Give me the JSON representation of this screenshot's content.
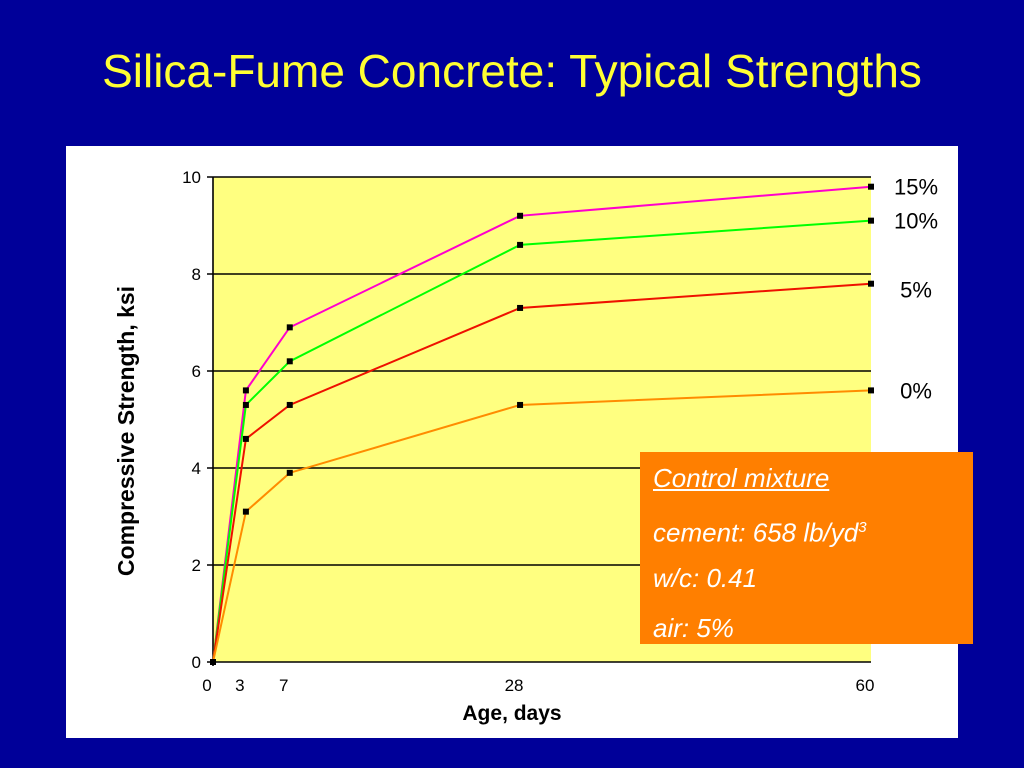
{
  "slide": {
    "title": "Silica-Fume Concrete: Typical Strengths",
    "background": "#000099",
    "title_color": "#ffff33"
  },
  "chart_data": {
    "type": "line",
    "title": "",
    "xlabel": "Age, days",
    "ylabel": "Compressive Strength, ksi",
    "xlim": [
      0,
      60
    ],
    "ylim": [
      0,
      10
    ],
    "x_ticks": [
      0,
      3,
      7,
      28,
      60
    ],
    "y_ticks": [
      0,
      2,
      4,
      6,
      8,
      10
    ],
    "grid": "horizontal",
    "plot_background": "#ffff80",
    "series": [
      {
        "name": "15%",
        "color": "#ff00cc",
        "x": [
          0,
          3,
          7,
          28,
          60
        ],
        "values": [
          0,
          5.6,
          6.9,
          9.2,
          9.8
        ]
      },
      {
        "name": "10%",
        "color": "#00ff00",
        "x": [
          0,
          3,
          7,
          28,
          60
        ],
        "values": [
          0,
          5.3,
          6.2,
          8.6,
          9.1
        ]
      },
      {
        "name": "5%",
        "color": "#ee1100",
        "x": [
          0,
          3,
          7,
          28,
          60
        ],
        "values": [
          0,
          4.6,
          5.3,
          7.3,
          7.8
        ]
      },
      {
        "name": "0%",
        "color": "#ff8c00",
        "x": [
          0,
          3,
          7,
          28,
          60
        ],
        "values": [
          0,
          3.1,
          3.9,
          5.3,
          5.6
        ]
      }
    ]
  },
  "note": {
    "heading": "Control mixture",
    "cement_text": "cement:  658 lb/yd",
    "cement_sup": "3",
    "wc": "w/c:  0.41",
    "air": "air:  5%",
    "background": "#ff7f00"
  }
}
